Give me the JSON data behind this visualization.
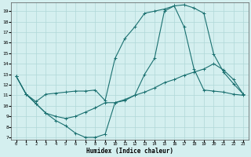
{
  "xlabel": "Humidex (Indice chaleur)",
  "bg_color": "#d4efef",
  "line_color": "#1a7070",
  "grid_color": "#b0d8d8",
  "xlim": [
    -0.5,
    23.5
  ],
  "ylim": [
    6.8,
    19.8
  ],
  "yticks": [
    7,
    8,
    9,
    10,
    11,
    12,
    13,
    14,
    15,
    16,
    17,
    18,
    19
  ],
  "xticks": [
    0,
    1,
    2,
    3,
    4,
    5,
    6,
    7,
    8,
    9,
    10,
    11,
    12,
    13,
    14,
    15,
    16,
    17,
    18,
    19,
    20,
    21,
    22,
    23
  ],
  "curve1_x": [
    0,
    1,
    2,
    3,
    4,
    5,
    6,
    7,
    8,
    9,
    10,
    11,
    12,
    13,
    14,
    15,
    16,
    17,
    18,
    19,
    20,
    21,
    22,
    23
  ],
  "curve1_y": [
    12.8,
    11.1,
    10.2,
    9.3,
    8.6,
    8.1,
    7.4,
    7.0,
    7.0,
    7.3,
    10.3,
    10.5,
    11.0,
    13.0,
    14.5,
    19.0,
    19.5,
    19.6,
    19.3,
    18.8,
    14.9,
    13.2,
    12.1,
    11.1
  ],
  "curve2_x": [
    0,
    1,
    2,
    3,
    4,
    5,
    6,
    7,
    8,
    9,
    10,
    11,
    12,
    13,
    14,
    15,
    16,
    17,
    18,
    19,
    20,
    21,
    22,
    23
  ],
  "curve2_y": [
    12.8,
    11.1,
    10.4,
    11.1,
    11.2,
    11.3,
    11.4,
    11.4,
    11.5,
    10.5,
    14.5,
    16.4,
    17.5,
    18.8,
    19.0,
    19.2,
    19.5,
    17.5,
    13.5,
    11.5,
    11.4,
    11.3,
    11.1,
    11.0
  ],
  "curve3_x": [
    0,
    1,
    2,
    3,
    4,
    5,
    6,
    7,
    8,
    9,
    10,
    11,
    12,
    13,
    14,
    15,
    16,
    17,
    18,
    19,
    20,
    21,
    22,
    23
  ],
  "curve3_y": [
    12.8,
    11.1,
    10.2,
    9.3,
    9.0,
    8.8,
    9.0,
    9.4,
    9.8,
    10.3,
    10.3,
    10.6,
    11.0,
    11.3,
    11.7,
    12.2,
    12.5,
    12.9,
    13.2,
    13.5,
    14.0,
    13.4,
    12.5,
    11.1
  ]
}
